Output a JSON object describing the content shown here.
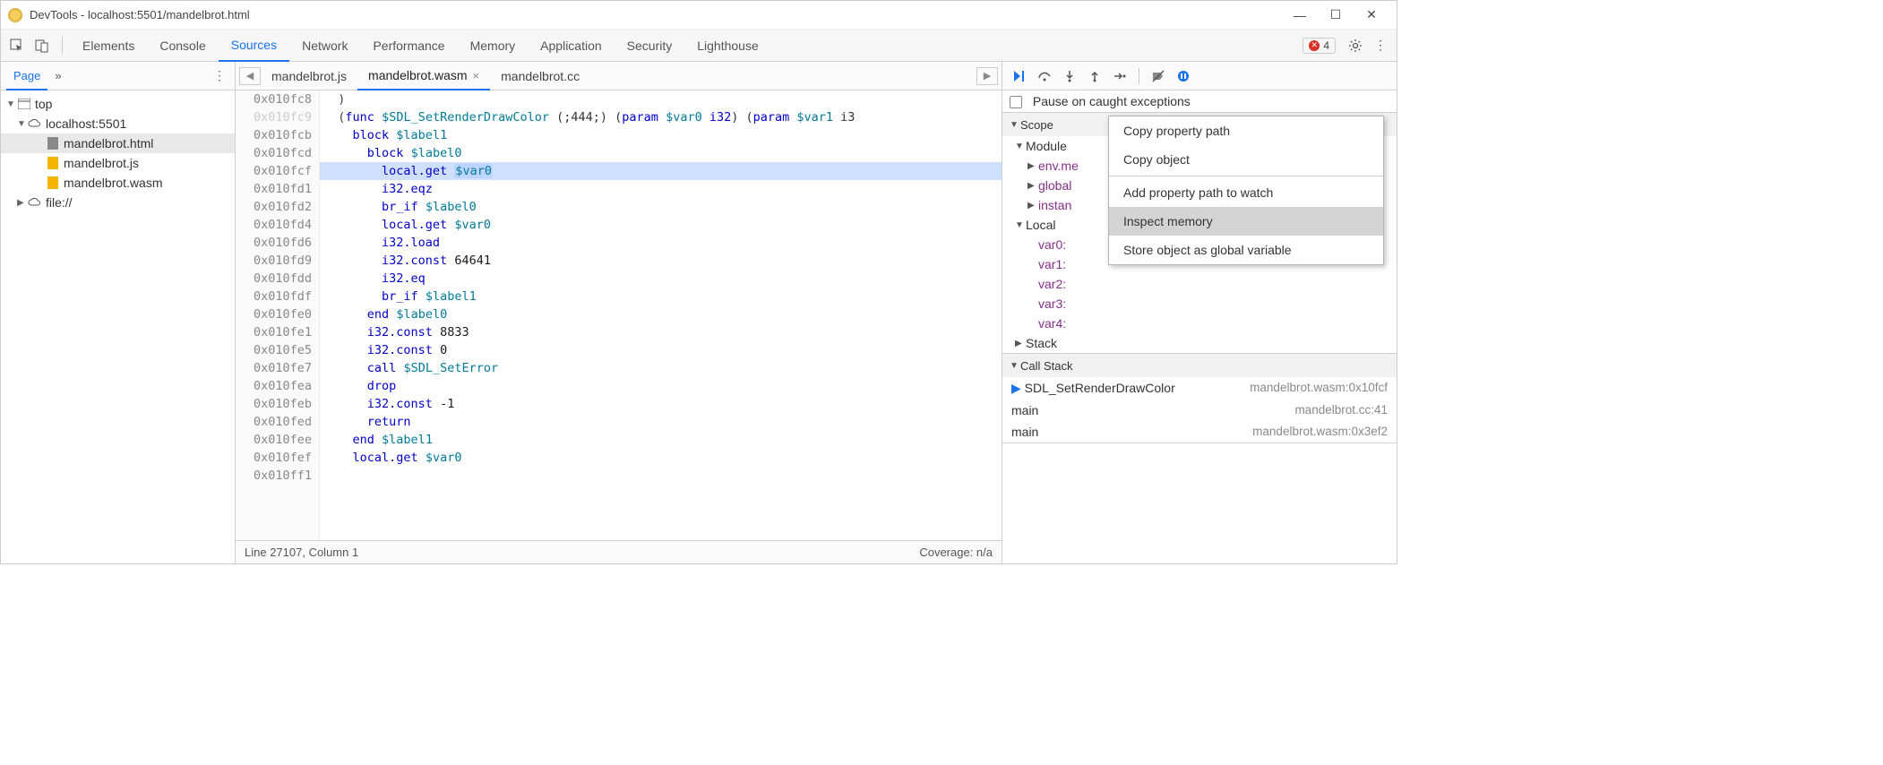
{
  "window": {
    "title": "DevTools - localhost:5501/mandelbrot.html"
  },
  "error_badge": {
    "count": "4"
  },
  "main_tabs": {
    "items": [
      "Elements",
      "Console",
      "Sources",
      "Network",
      "Performance",
      "Memory",
      "Application",
      "Security",
      "Lighthouse"
    ],
    "active_index": 2
  },
  "navigator": {
    "tabs": {
      "page": "Page",
      "more": "»"
    },
    "tree": {
      "top": "top",
      "host": "localhost:5501",
      "files": [
        "mandelbrot.html",
        "mandelbrot.js",
        "mandelbrot.wasm"
      ],
      "file_scheme": "file://"
    }
  },
  "editor": {
    "open_tabs": [
      "mandelbrot.js",
      "mandelbrot.wasm",
      "mandelbrot.cc"
    ],
    "active_index": 1,
    "gutter": [
      "0x010fc8",
      "0x010fc9",
      "0x010fcb",
      "0x010fcd",
      "0x010fcf",
      "0x010fd1",
      "0x010fd2",
      "0x010fd4",
      "0x010fd6",
      "0x010fd9",
      "0x010fdd",
      "0x010fdf",
      "0x010fe0",
      "0x010fe1",
      "0x010fe5",
      "0x010fe7",
      "0x010fea",
      "0x010feb",
      "0x010fed",
      "0x010fee",
      "0x010fef",
      "0x010ff1"
    ],
    "dim_gutter_index": 1,
    "highlight_index": 4,
    "code": [
      {
        "indent": 1,
        "tokens": [
          {
            "t": ")",
            "c": "punc"
          }
        ]
      },
      {
        "indent": 1,
        "tokens": [
          {
            "t": "(",
            "c": "punc"
          },
          {
            "t": "func",
            "c": "kw"
          },
          {
            "t": " "
          },
          {
            "t": "$SDL_SetRenderDrawColor",
            "c": "ident"
          },
          {
            "t": " (;444;) ("
          },
          {
            "t": "param",
            "c": "kw"
          },
          {
            "t": " "
          },
          {
            "t": "$var0",
            "c": "ident"
          },
          {
            "t": " "
          },
          {
            "t": "i32",
            "c": "kw"
          },
          {
            "t": ") ("
          },
          {
            "t": "param",
            "c": "kw"
          },
          {
            "t": " "
          },
          {
            "t": "$var1",
            "c": "ident"
          },
          {
            "t": " i3"
          }
        ]
      },
      {
        "indent": 2,
        "tokens": [
          {
            "t": "block",
            "c": "kw"
          },
          {
            "t": " "
          },
          {
            "t": "$label1",
            "c": "ident"
          }
        ]
      },
      {
        "indent": 3,
        "tokens": [
          {
            "t": "block",
            "c": "kw"
          },
          {
            "t": " "
          },
          {
            "t": "$label0",
            "c": "ident"
          }
        ]
      },
      {
        "indent": 4,
        "tokens": [
          {
            "t": "local.get",
            "c": "kw"
          },
          {
            "t": " "
          },
          {
            "t": "$var0",
            "c": "ident",
            "hl": true
          }
        ]
      },
      {
        "indent": 4,
        "tokens": [
          {
            "t": "i32.eqz",
            "c": "kw"
          }
        ]
      },
      {
        "indent": 4,
        "tokens": [
          {
            "t": "br_if",
            "c": "kw"
          },
          {
            "t": " "
          },
          {
            "t": "$label0",
            "c": "ident"
          }
        ]
      },
      {
        "indent": 4,
        "tokens": [
          {
            "t": "local.get",
            "c": "kw"
          },
          {
            "t": " "
          },
          {
            "t": "$var0",
            "c": "ident"
          }
        ]
      },
      {
        "indent": 4,
        "tokens": [
          {
            "t": "i32.load",
            "c": "kw"
          }
        ]
      },
      {
        "indent": 4,
        "tokens": [
          {
            "t": "i32.const",
            "c": "kw"
          },
          {
            "t": " "
          },
          {
            "t": "64641",
            "c": "num"
          }
        ]
      },
      {
        "indent": 4,
        "tokens": [
          {
            "t": "i32.eq",
            "c": "kw"
          }
        ]
      },
      {
        "indent": 4,
        "tokens": [
          {
            "t": "br_if",
            "c": "kw"
          },
          {
            "t": " "
          },
          {
            "t": "$label1",
            "c": "ident"
          }
        ]
      },
      {
        "indent": 3,
        "tokens": [
          {
            "t": "end",
            "c": "kw"
          },
          {
            "t": " "
          },
          {
            "t": "$label0",
            "c": "ident"
          }
        ]
      },
      {
        "indent": 3,
        "tokens": [
          {
            "t": "i32.const",
            "c": "kw"
          },
          {
            "t": " "
          },
          {
            "t": "8833",
            "c": "num"
          }
        ]
      },
      {
        "indent": 3,
        "tokens": [
          {
            "t": "i32.const",
            "c": "kw"
          },
          {
            "t": " "
          },
          {
            "t": "0",
            "c": "num"
          }
        ]
      },
      {
        "indent": 3,
        "tokens": [
          {
            "t": "call",
            "c": "kw"
          },
          {
            "t": " "
          },
          {
            "t": "$SDL_SetError",
            "c": "ident"
          }
        ]
      },
      {
        "indent": 3,
        "tokens": [
          {
            "t": "drop",
            "c": "kw"
          }
        ]
      },
      {
        "indent": 3,
        "tokens": [
          {
            "t": "i32.const",
            "c": "kw"
          },
          {
            "t": " "
          },
          {
            "t": "-1",
            "c": "num"
          }
        ]
      },
      {
        "indent": 3,
        "tokens": [
          {
            "t": "return",
            "c": "kw"
          }
        ]
      },
      {
        "indent": 2,
        "tokens": [
          {
            "t": "end",
            "c": "kw"
          },
          {
            "t": " "
          },
          {
            "t": "$label1",
            "c": "ident"
          }
        ]
      },
      {
        "indent": 2,
        "tokens": [
          {
            "t": "local.get",
            "c": "kw"
          },
          {
            "t": " "
          },
          {
            "t": "$var0",
            "c": "ident"
          }
        ]
      },
      {
        "indent": 2,
        "tokens": []
      }
    ],
    "status": {
      "left": "Line 27107, Column 1",
      "right": "Coverage: n/a"
    }
  },
  "debugger": {
    "pause_caught": "Pause on caught exceptions",
    "scope_header": "Scope",
    "module_header": "Module",
    "module_items": [
      "env.me",
      "global",
      "instan"
    ],
    "local_header": "Local",
    "locals": [
      "var0:",
      "var1:",
      "var2:",
      "var3:",
      "var4:"
    ],
    "stack_header": "Stack",
    "callstack_header": "Call Stack",
    "frames": [
      {
        "name": "SDL_SetRenderDrawColor",
        "loc": "mandelbrot.wasm:0x10fcf",
        "current": true
      },
      {
        "name": "main",
        "loc": "mandelbrot.cc:41"
      },
      {
        "name": "main",
        "loc": "mandelbrot.wasm:0x3ef2"
      }
    ]
  },
  "context_menu": {
    "items": [
      "Copy property path",
      "Copy object",
      "Add property path to watch",
      "Inspect memory",
      "Store object as global variable"
    ],
    "separators_after": [
      1
    ],
    "selected_index": 3
  },
  "colors": {
    "accent": "#1a73e8",
    "highlight_bg": "#cfe0ff",
    "error": "#d93025",
    "keyword": "#0000cc",
    "identifier": "#007a99",
    "varname": "#862f8a"
  }
}
